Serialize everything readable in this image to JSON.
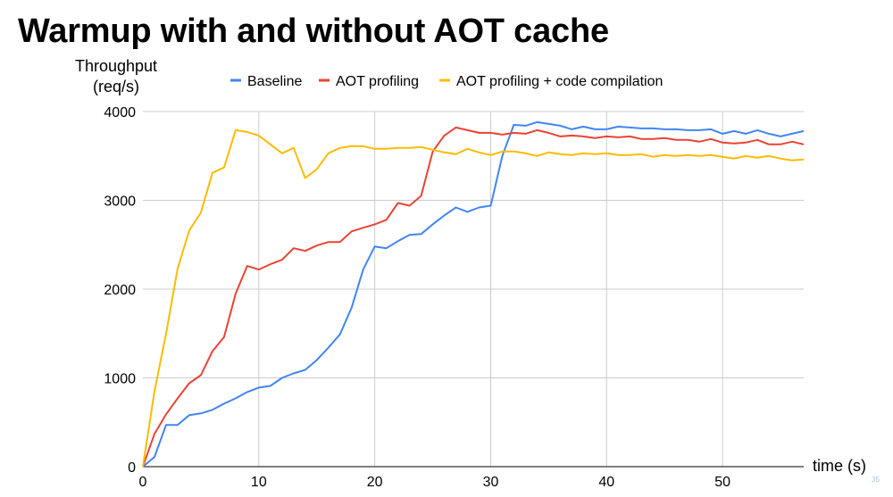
{
  "title": "Warmup with and without AOT cache",
  "slide_number": "35",
  "colors": {
    "baseline": "#4285f4",
    "aot_profiling": "#ea4335",
    "aot_profiling_code": "#fbbc04",
    "grid": "#cccccc",
    "axis": "#333333"
  },
  "chart_data": {
    "type": "line",
    "title": "",
    "xlabel": "time (s)",
    "ylabel_lines": [
      "Throughput",
      "(req/s)"
    ],
    "xlim": [
      0,
      57
    ],
    "ylim": [
      0,
      4000
    ],
    "xticks": [
      0,
      10,
      20,
      30,
      40,
      50
    ],
    "yticks": [
      0,
      1000,
      2000,
      3000,
      4000
    ],
    "grid": true,
    "legend_position": "top",
    "x": [
      0,
      1,
      2,
      3,
      4,
      5,
      6,
      7,
      8,
      9,
      10,
      11,
      12,
      13,
      14,
      15,
      16,
      17,
      18,
      19,
      20,
      21,
      22,
      23,
      24,
      25,
      26,
      27,
      28,
      29,
      30,
      31,
      32,
      33,
      34,
      35,
      36,
      37,
      38,
      39,
      40,
      41,
      42,
      43,
      44,
      45,
      46,
      47,
      48,
      49,
      50,
      51,
      52,
      53,
      54,
      55,
      56,
      57
    ],
    "series": [
      {
        "name": "Baseline",
        "color_key": "baseline",
        "values": [
          0,
          110,
          470,
          470,
          580,
          600,
          640,
          710,
          770,
          840,
          890,
          910,
          1000,
          1050,
          1090,
          1200,
          1340,
          1490,
          1790,
          2220,
          2480,
          2460,
          2540,
          2610,
          2620,
          2730,
          2830,
          2920,
          2870,
          2920,
          2940,
          3500,
          3850,
          3840,
          3880,
          3860,
          3840,
          3800,
          3830,
          3800,
          3800,
          3830,
          3820,
          3810,
          3810,
          3800,
          3800,
          3790,
          3790,
          3800,
          3750,
          3780,
          3750,
          3790,
          3750,
          3720,
          3750,
          3780
        ]
      },
      {
        "name": "AOT profiling",
        "color_key": "aot_profiling",
        "values": [
          0,
          370,
          590,
          770,
          940,
          1030,
          1300,
          1460,
          1950,
          2260,
          2220,
          2280,
          2330,
          2460,
          2430,
          2490,
          2530,
          2530,
          2650,
          2690,
          2730,
          2780,
          2970,
          2940,
          3050,
          3550,
          3730,
          3820,
          3790,
          3760,
          3760,
          3740,
          3760,
          3750,
          3790,
          3760,
          3720,
          3730,
          3720,
          3700,
          3720,
          3710,
          3720,
          3690,
          3690,
          3700,
          3680,
          3680,
          3660,
          3690,
          3650,
          3640,
          3650,
          3680,
          3630,
          3630,
          3660,
          3630
        ]
      },
      {
        "name": "AOT profiling + code compilation",
        "color_key": "aot_profiling_code",
        "values": [
          0,
          850,
          1500,
          2230,
          2660,
          2860,
          3310,
          3370,
          3790,
          3770,
          3730,
          3630,
          3530,
          3590,
          3250,
          3350,
          3530,
          3590,
          3610,
          3610,
          3580,
          3580,
          3590,
          3590,
          3600,
          3570,
          3540,
          3520,
          3580,
          3540,
          3510,
          3550,
          3550,
          3530,
          3500,
          3540,
          3520,
          3510,
          3530,
          3520,
          3530,
          3510,
          3510,
          3520,
          3490,
          3510,
          3500,
          3510,
          3500,
          3510,
          3490,
          3470,
          3500,
          3480,
          3500,
          3470,
          3450,
          3460
        ]
      }
    ]
  }
}
